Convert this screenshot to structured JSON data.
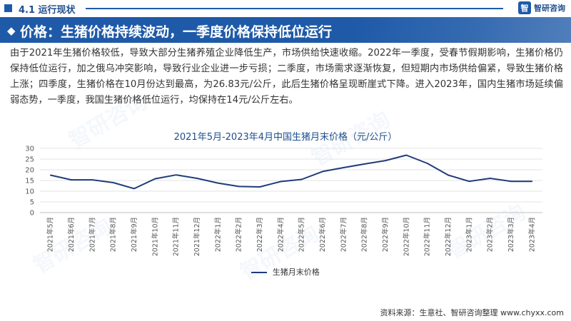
{
  "header": {
    "section_label": "4.1 运行现状",
    "logo_mark": "智",
    "logo_text": "智研咨询"
  },
  "banner": {
    "title": "价格：生猪价格持续波动，一季度价格保持低位运行"
  },
  "body_text": "由于2021年生猪价格较低，导致大部分生猪养殖企业降低生产，市场供给快速收缩。2022年一季度，受春节假期影响，生猪价格仍保持低位运行，加之俄乌冲突影响，导致行业企业进一步亏损；二季度，市场需求逐渐恢复，但短期内市场供给偏紧，导致生猪价格上涨；四季度，生猪价格在10月份达到最高，为26.83元/公斤，此后生猪价格呈现断崖式下降。进入2023年，国内生猪市场延续偏弱态势，一季度，我国生猪价格低位运行，均保持在14元/公斤左右。",
  "chart_data": {
    "type": "line",
    "title": "2021年5月-2023年4月中国生猪月末价格（元/公斤）",
    "categories": [
      "2021年5月",
      "2021年6月",
      "2021年7月",
      "2021年8月",
      "2021年9月",
      "2021年10月",
      "2021年11月",
      "2021年12月",
      "2022年1月",
      "2022年2月",
      "2022年3月",
      "2022年4月",
      "2022年5月",
      "2022年6月",
      "2022年7月",
      "2022年8月",
      "2022年9月",
      "2022年10月",
      "2022年11月",
      "2022年12月",
      "2023年1月",
      "2023年2月",
      "2023年3月",
      "2023年4月"
    ],
    "series": [
      {
        "name": "生猪月末价格",
        "values": [
          17.5,
          15.3,
          15.3,
          14.0,
          11.2,
          15.8,
          17.6,
          16.0,
          13.8,
          12.2,
          12.0,
          14.5,
          15.5,
          19.2,
          21.0,
          22.7,
          24.3,
          26.83,
          23.0,
          17.5,
          14.6,
          16.0,
          14.6,
          14.6
        ],
        "color": "#1f3c7a"
      }
    ],
    "ylim": [
      0,
      30
    ],
    "yticks": [
      0,
      5,
      10,
      15,
      20,
      25,
      30
    ],
    "grid": true,
    "legend": "bottom"
  },
  "legend": {
    "label": "生猪月末价格"
  },
  "source": "资料来源：生意社、智研咨询整理 www.chyxx.com",
  "watermark": "智研咨询"
}
